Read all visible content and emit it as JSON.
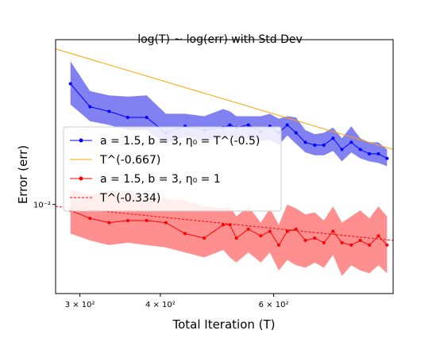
{
  "chart_data": {
    "type": "line",
    "title": "log(T) ~ log(err) with Std Dev",
    "xlabel": "Total Iteration (T)",
    "ylabel": "Error (err)",
    "xscale": "log",
    "yscale": "log",
    "xlim": [
      275,
      920
    ],
    "ylim": [
      0.0063,
      0.0235
    ],
    "xticks": [
      {
        "value": 300,
        "label": "3 × 10²"
      },
      {
        "value": 400,
        "label": "4 × 10²"
      },
      {
        "value": 600,
        "label": "6 × 10²"
      }
    ],
    "yticks": [
      {
        "value": 0.01,
        "label": "10⁻²"
      }
    ],
    "legend_position": "center-left",
    "colors": {
      "blue": "#0000ff",
      "blue_fill": "#6b6bf0",
      "orange": "#ffa500",
      "red": "#ff0000",
      "red_fill": "#ff7a7a"
    },
    "x": [
      290,
      311,
      333,
      356,
      381,
      408,
      437,
      468,
      501,
      513,
      525,
      548,
      573,
      592,
      611,
      630,
      650,
      672,
      695,
      718,
      742,
      766,
      792,
      818,
      845,
      873,
      900
    ],
    "series": [
      {
        "name": "a = 1.5, b = 3, η₀ = T^(-0.5)",
        "color": "#0000ff",
        "marker": "dot",
        "values": [
          0.0187,
          0.0166,
          0.0162,
          0.0157,
          0.0157,
          0.0145,
          0.015,
          0.0147,
          0.0149,
          0.0151,
          0.0149,
          0.0151,
          0.0146,
          0.015,
          0.0145,
          0.0151,
          0.0145,
          0.0138,
          0.0136,
          0.0136,
          0.0141,
          0.0133,
          0.0138,
          0.0133,
          0.013,
          0.013,
          0.0127
        ],
        "lower": [
          0.0168,
          0.0154,
          0.0151,
          0.0147,
          0.0147,
          0.0137,
          0.0142,
          0.0139,
          0.0141,
          0.0142,
          0.014,
          0.0141,
          0.0139,
          0.014,
          0.0136,
          0.0143,
          0.0137,
          0.0131,
          0.0129,
          0.0129,
          0.0132,
          0.0125,
          0.0131,
          0.0127,
          0.0125,
          0.0124,
          0.0122
        ],
        "upper": [
          0.021,
          0.018,
          0.0176,
          0.0175,
          0.0176,
          0.016,
          0.016,
          0.0158,
          0.0164,
          0.0162,
          0.0158,
          0.0158,
          0.0158,
          0.016,
          0.0156,
          0.0158,
          0.0157,
          0.0147,
          0.0144,
          0.0145,
          0.0149,
          0.0141,
          0.015,
          0.0141,
          0.0138,
          0.0138,
          0.0133
        ]
      },
      {
        "name": "T^(-0.667)",
        "color": "#ffa500",
        "style": "solid",
        "values_at_xlim": [
          0.0224,
          0.0133
        ]
      },
      {
        "name": "a = 1.5, b = 3, η₀ = 1",
        "color": "#ff0000",
        "marker": "dot",
        "values": [
          0.0097,
          0.0093,
          0.0091,
          0.0092,
          0.0092,
          0.0091,
          0.0086,
          0.0084,
          0.009,
          0.009,
          0.0084,
          0.0088,
          0.0085,
          0.0087,
          0.0081,
          0.0087,
          0.0088,
          0.0083,
          0.0084,
          0.0082,
          0.0087,
          0.0082,
          0.0081,
          0.0083,
          0.0081,
          0.0085,
          0.0081
        ],
        "lower": [
          0.0086,
          0.0083,
          0.0081,
          0.0082,
          0.0081,
          0.008,
          0.0078,
          0.0076,
          0.0079,
          0.0076,
          0.0074,
          0.0078,
          0.0074,
          0.0078,
          0.0071,
          0.0075,
          0.0073,
          0.0072,
          0.0074,
          0.0072,
          0.0077,
          0.0069,
          0.0073,
          0.0071,
          0.007,
          0.0073,
          0.007
        ],
        "upper": [
          0.0108,
          0.0105,
          0.0107,
          0.0107,
          0.0103,
          0.0103,
          0.0102,
          0.0099,
          0.0098,
          0.0099,
          0.0094,
          0.0099,
          0.0091,
          0.0098,
          0.009,
          0.01,
          0.0098,
          0.0095,
          0.0096,
          0.0092,
          0.0099,
          0.0091,
          0.0094,
          0.0097,
          0.0093,
          0.0099,
          0.0094
        ]
      },
      {
        "name": "T^(-0.334)",
        "color": "#ff0000",
        "style": "dashed",
        "values_at_xlim": [
          0.0099,
          0.0083
        ]
      }
    ]
  }
}
